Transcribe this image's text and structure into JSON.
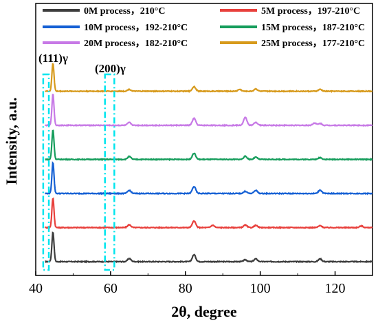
{
  "chart_data": {
    "type": "line",
    "xlabel": "2θ, degree",
    "ylabel": "Intensity, a.u.",
    "xlim": [
      40,
      130
    ],
    "x_ticks": [
      40,
      60,
      80,
      100,
      120
    ],
    "y_ticks_shown": false,
    "grid": false,
    "legend_placement": "top",
    "annotations": [
      {
        "text": "(111)γ",
        "x_range": [
          42.0,
          43.5
        ]
      },
      {
        "text": "(200)γ",
        "x_range": [
          58.5,
          61.0
        ]
      }
    ],
    "peak_positions": [
      44.6,
      65.0,
      82.3,
      96.0,
      98.8,
      116.0
    ],
    "series": [
      {
        "name": "0M   process，210°C",
        "color": "#3d3d3d",
        "baseline": 0.0,
        "peaks": [
          [
            44.6,
            1.9
          ],
          [
            65.0,
            0.2
          ],
          [
            82.3,
            0.45
          ],
          [
            96.0,
            0.12
          ],
          [
            98.8,
            0.18
          ],
          [
            116.0,
            0.18
          ]
        ]
      },
      {
        "name": "5M   process，197-210°C",
        "color": "#e8403c",
        "baseline": 2.2,
        "peaks": [
          [
            44.6,
            1.9
          ],
          [
            65.0,
            0.18
          ],
          [
            82.3,
            0.42
          ],
          [
            87.3,
            0.15
          ],
          [
            96.0,
            0.16
          ],
          [
            98.8,
            0.14
          ],
          [
            116.0,
            0.12
          ],
          [
            127.0,
            0.1
          ]
        ]
      },
      {
        "name": "10M process，192-210°C",
        "color": "#1560d4",
        "baseline": 4.4,
        "peaks": [
          [
            44.6,
            2.0
          ],
          [
            65.0,
            0.2
          ],
          [
            82.3,
            0.45
          ],
          [
            96.0,
            0.14
          ],
          [
            98.8,
            0.2
          ],
          [
            116.0,
            0.22
          ]
        ]
      },
      {
        "name": "15M process，187-210°C",
        "color": "#169d5c",
        "baseline": 6.6,
        "peaks": [
          [
            44.6,
            1.9
          ],
          [
            65.0,
            0.18
          ],
          [
            82.3,
            0.4
          ],
          [
            96.0,
            0.2
          ],
          [
            98.8,
            0.14
          ],
          [
            116.0,
            0.12
          ]
        ]
      },
      {
        "name": "20M process，182-210°C",
        "color": "#c779e6",
        "baseline": 8.8,
        "peaks": [
          [
            44.6,
            2.0
          ],
          [
            65.0,
            0.18
          ],
          [
            82.3,
            0.45
          ],
          [
            96.0,
            0.5
          ],
          [
            98.8,
            0.2
          ],
          [
            114.5,
            0.15
          ],
          [
            116.0,
            0.12
          ]
        ]
      },
      {
        "name": "25M process，177-210°C",
        "color": "#d79a1c",
        "baseline": 11.0,
        "peaks": [
          [
            44.6,
            1.8
          ],
          [
            65.0,
            0.12
          ],
          [
            82.3,
            0.3
          ],
          [
            94.5,
            0.12
          ],
          [
            98.8,
            0.15
          ],
          [
            116.0,
            0.12
          ]
        ]
      }
    ]
  }
}
